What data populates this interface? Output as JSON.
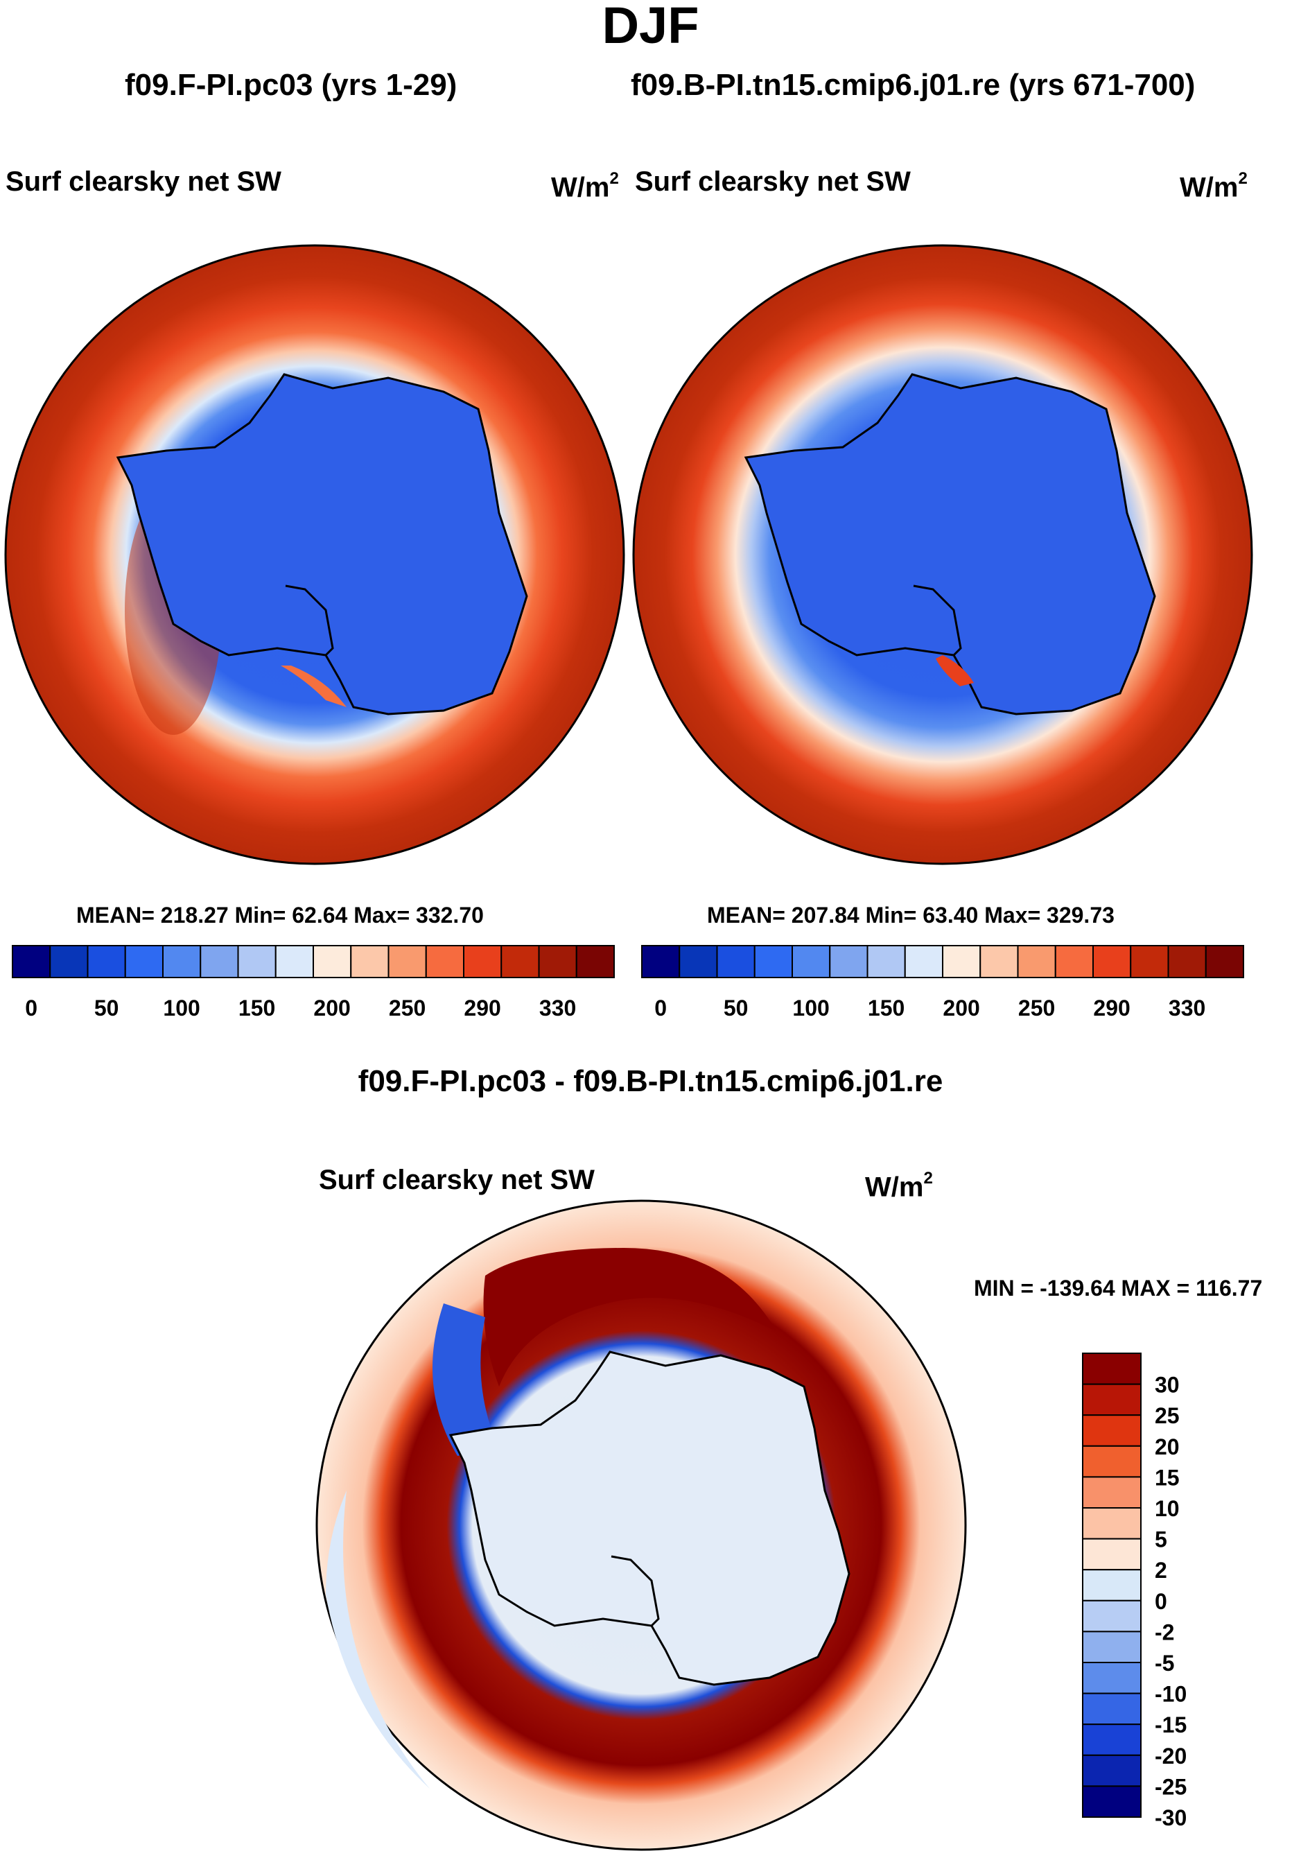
{
  "figure": {
    "season": "DJF",
    "diff_title": "f09.F-PI.pc03 - f09.B-PI.tn15.cmip6.j01.re"
  },
  "panels": {
    "left": {
      "case": "f09.F-PI.pc03 (yrs 1-29)",
      "variable": "Surf clearsky net SW",
      "unit_base": "W/m",
      "unit_exp": "2",
      "stats": "MEAN= 218.27  Min=  62.64  Max= 332.70"
    },
    "right": {
      "case": "f09.B-PI.tn15.cmip6.j01.re (yrs 671-700)",
      "variable": "Surf clearsky net SW",
      "unit_base": "W/m",
      "unit_exp": "2",
      "stats": "MEAN= 207.84  Min=  63.40  Max= 329.73"
    },
    "diff": {
      "variable": "Surf clearsky net SW",
      "unit_base": "W/m",
      "unit_exp": "2",
      "stats": "MIN = -139.64 MAX = 116.77"
    }
  },
  "colorbars": {
    "absolute": {
      "colors": [
        "#000080",
        "#0836b8",
        "#1a4fe0",
        "#2e6af2",
        "#5288f0",
        "#7fa5ef",
        "#b0c8f4",
        "#dbe9fa",
        "#fdebdc",
        "#fcc8aa",
        "#f99a6e",
        "#f66b3f",
        "#e8401c",
        "#c22a0a",
        "#a01a06",
        "#7a0503"
      ],
      "tick_labels": [
        "0",
        "50",
        "100",
        "150",
        "200",
        "250",
        "290",
        "330"
      ]
    },
    "difference": {
      "colors": [
        "#8a0000",
        "#b81606",
        "#df3510",
        "#f0602e",
        "#f8916a",
        "#fcc3a6",
        "#fde6d6",
        "#d8e8f8",
        "#b7cdf4",
        "#8fb0ee",
        "#5d8ceb",
        "#3566e5",
        "#1942d6",
        "#0b25b0",
        "#000080"
      ],
      "tick_labels": [
        "30",
        "25",
        "20",
        "15",
        "10",
        "5",
        "2",
        "0",
        "-2",
        "-5",
        "-10",
        "-15",
        "-20",
        "-25",
        "-30"
      ]
    }
  }
}
